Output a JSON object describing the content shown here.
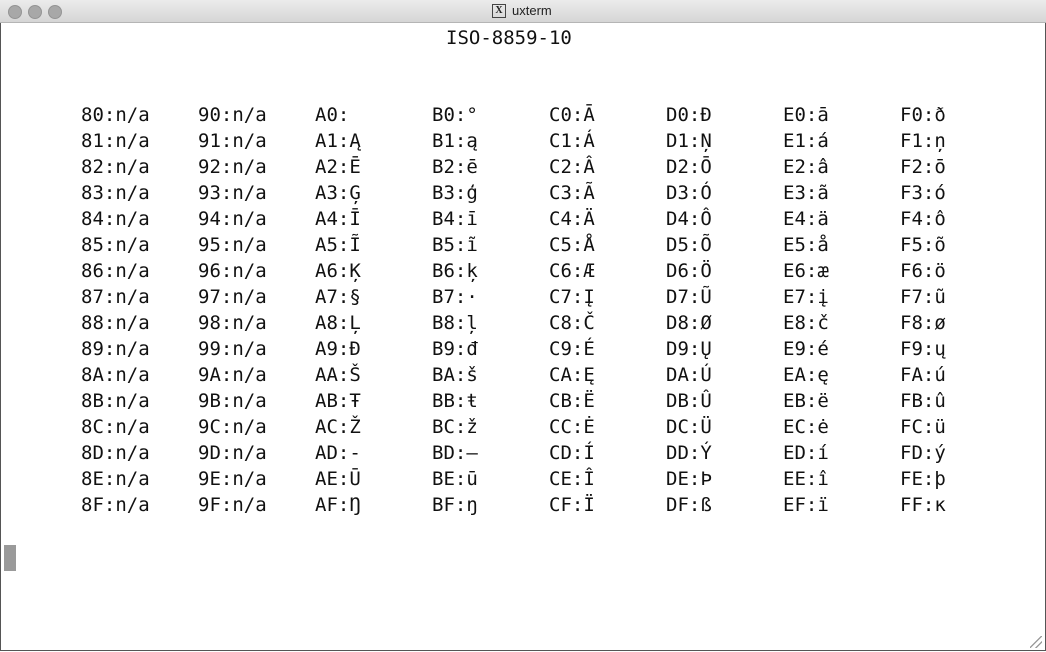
{
  "window": {
    "title": "uxterm"
  },
  "terminal": {
    "heading": "ISO-8859-10",
    "columns": [
      [
        "80:n/a",
        "81:n/a",
        "82:n/a",
        "83:n/a",
        "84:n/a",
        "85:n/a",
        "86:n/a",
        "87:n/a",
        "88:n/a",
        "89:n/a",
        "8A:n/a",
        "8B:n/a",
        "8C:n/a",
        "8D:n/a",
        "8E:n/a",
        "8F:n/a"
      ],
      [
        "90:n/a",
        "91:n/a",
        "92:n/a",
        "93:n/a",
        "94:n/a",
        "95:n/a",
        "96:n/a",
        "97:n/a",
        "98:n/a",
        "99:n/a",
        "9A:n/a",
        "9B:n/a",
        "9C:n/a",
        "9D:n/a",
        "9E:n/a",
        "9F:n/a"
      ],
      [
        "A0: ",
        "A1:Ą",
        "A2:Ē",
        "A3:Ģ",
        "A4:Ī",
        "A5:Ĩ",
        "A6:Ķ",
        "A7:§",
        "A8:Ļ",
        "A9:Đ",
        "AA:Š",
        "AB:Ŧ",
        "AC:Ž",
        "AD:-",
        "AE:Ū",
        "AF:Ŋ"
      ],
      [
        "B0:°",
        "B1:ą",
        "B2:ē",
        "B3:ģ",
        "B4:ī",
        "B5:ĩ",
        "B6:ķ",
        "B7:·",
        "B8:ļ",
        "B9:đ",
        "BA:š",
        "BB:ŧ",
        "BC:ž",
        "BD:―",
        "BE:ū",
        "BF:ŋ"
      ],
      [
        "C0:Ā",
        "C1:Á",
        "C2:Â",
        "C3:Ã",
        "C4:Ä",
        "C5:Å",
        "C6:Æ",
        "C7:Į",
        "C8:Č",
        "C9:É",
        "CA:Ę",
        "CB:Ë",
        "CC:Ė",
        "CD:Í",
        "CE:Î",
        "CF:Ï"
      ],
      [
        "D0:Đ",
        "D1:Ņ",
        "D2:Ō",
        "D3:Ó",
        "D4:Ô",
        "D5:Õ",
        "D6:Ö",
        "D7:Ũ",
        "D8:Ø",
        "D9:Ų",
        "DA:Ú",
        "DB:Û",
        "DC:Ü",
        "DD:Ý",
        "DE:Þ",
        "DF:ß"
      ],
      [
        "E0:ā",
        "E1:á",
        "E2:â",
        "E3:ã",
        "E4:ä",
        "E5:å",
        "E6:æ",
        "E7:į",
        "E8:č",
        "E9:é",
        "EA:ę",
        "EB:ë",
        "EC:ė",
        "ED:í",
        "EE:î",
        "EF:ï"
      ],
      [
        "F0:ð",
        "F1:ņ",
        "F2:ō",
        "F3:ó",
        "F4:ô",
        "F5:õ",
        "F6:ö",
        "F7:ũ",
        "F8:ø",
        "F9:ų",
        "FA:ú",
        "FB:û",
        "FC:ü",
        "FD:ý",
        "FE:þ",
        "FF:ĸ"
      ]
    ]
  }
}
